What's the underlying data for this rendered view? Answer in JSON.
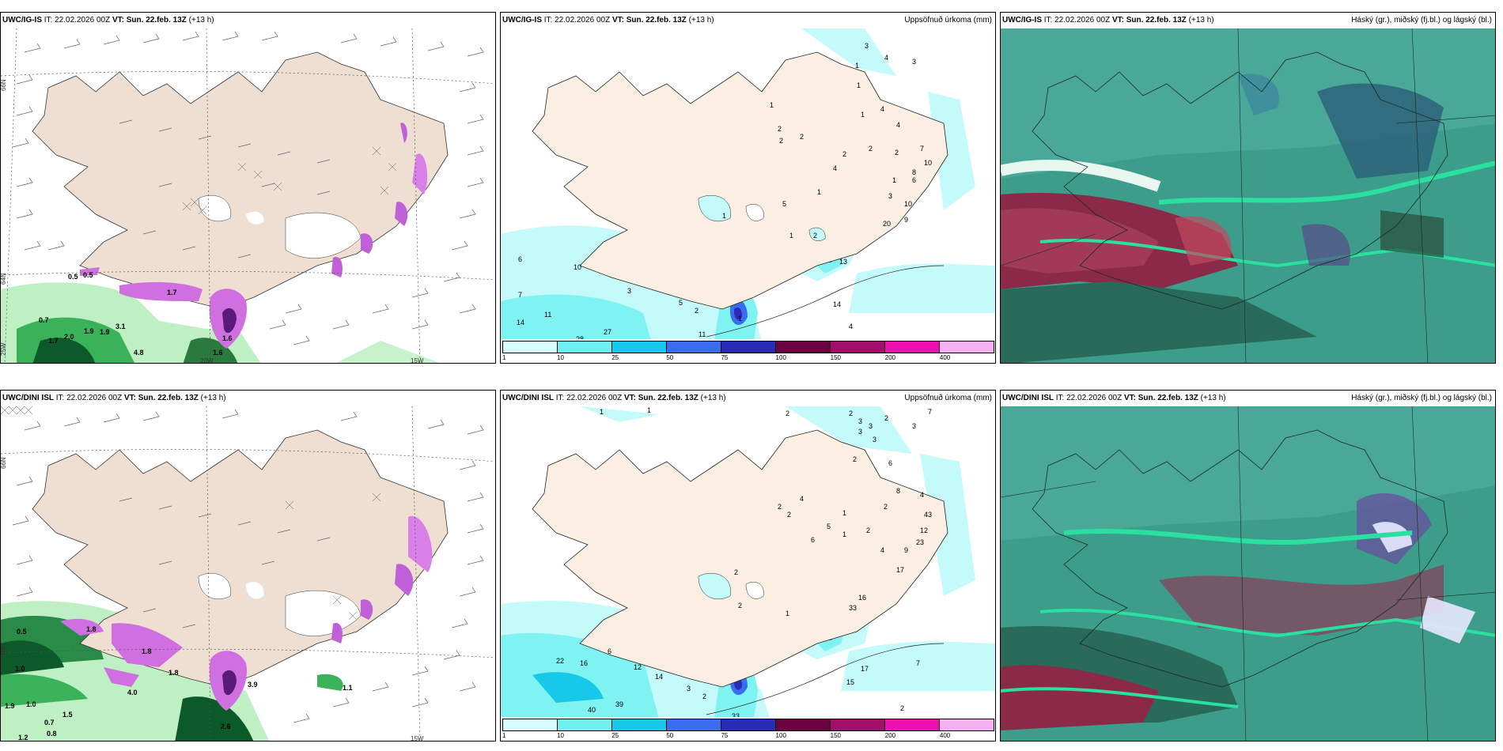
{
  "panels": {
    "p1": {
      "model": "UWC/IG-IS",
      "it": "IT: 22.02.2026 00Z",
      "vt_label": "VT:",
      "vt": "Sun. 22.feb. 13Z",
      "lead": "(+13 h)",
      "right_title": ""
    },
    "p2": {
      "model": "UWC/IG-IS",
      "it": "IT: 22.02.2026 00Z",
      "vt_label": "VT:",
      "vt": "Sun. 22.feb. 13Z",
      "lead": "(+13 h)",
      "right_title": "Uppsöfnuð úrkoma (mm)"
    },
    "p3": {
      "model": "UWC/IG-IS",
      "it": "IT: 22.02.2026 00Z",
      "vt_label": "VT:",
      "vt": "Sun. 22.feb. 13Z",
      "lead": "(+13 h)",
      "right_title": "Háský (gr.), miðský (fj.bl.) og lágský (bl.)"
    },
    "p4": {
      "model": "UWC/DINI ISL",
      "it": "IT: 22.02.2026 00Z",
      "vt_label": "VT:",
      "vt": "Sun. 22.feb. 13Z",
      "lead": "(+13 h)",
      "right_title": ""
    },
    "p5": {
      "model": "UWC/DINI ISL",
      "it": "IT: 22.02.2026 00Z",
      "vt_label": "VT:",
      "vt": "Sun. 22.feb. 13Z",
      "lead": "(+13 h)",
      "right_title": "Uppsöfnuð úrkoma (mm)"
    },
    "p6": {
      "model": "UWC/DINI ISL",
      "it": "IT: 22.02.2026 00Z",
      "vt_label": "VT:",
      "vt": "Sun. 22.feb. 13Z",
      "lead": "(+13 h)",
      "right_title": "Háský (gr.), miðský (fj.bl.) og lágský (bl.)"
    }
  },
  "axes": {
    "lat66": "66N",
    "lat64": "64N",
    "lat65": "65N",
    "lon20": "20W",
    "lon15": "15W",
    "lon25": "25W",
    "lat64b": "64N",
    "lat66b": "66N"
  },
  "legend": {
    "ticks": [
      "1",
      "10",
      "25",
      "50",
      "75",
      "100",
      "150",
      "200",
      "400"
    ],
    "colors": [
      "#d8fbfb",
      "#6ff0f0",
      "#18c8e8",
      "#3a6cf0",
      "#2a2ab8",
      "#6a0040",
      "#a0106a",
      "#ec10b0",
      "#f4b0f0"
    ]
  },
  "p1_labels": [
    "0.5",
    "0.5",
    "1.7",
    "1.6",
    "0.7",
    "2.0",
    "1.9",
    "3.1",
    "1.7",
    "1.9",
    "4.8",
    "1.6"
  ],
  "p4_labels": [
    "0.5",
    "1.0",
    "1.8",
    "1.0",
    "1.9",
    "1.5",
    "0.7",
    "0.8",
    "1.2",
    "1.8",
    "2.6",
    "3.9",
    "1.1",
    "1.8",
    "4.0"
  ],
  "p2_labels": [
    "3",
    "4",
    "3",
    "1",
    "1",
    "1",
    "4",
    "1",
    "4",
    "2",
    "2",
    "2",
    "7",
    "10",
    "8",
    "6",
    "1",
    "3",
    "4",
    "2",
    "2",
    "2",
    "9",
    "10",
    "20",
    "13",
    "1",
    "6",
    "10",
    "7",
    "14",
    "11",
    "3",
    "5",
    "2",
    "28",
    "27",
    "14",
    "4",
    "4",
    "11",
    "1",
    "5",
    "1",
    "1",
    "2"
  ],
  "p5_labels": [
    "1",
    "1",
    "2",
    "2",
    "3",
    "3",
    "2",
    "3",
    "7",
    "3",
    "3",
    "2",
    "6",
    "8",
    "4",
    "43",
    "23",
    "12",
    "9",
    "2",
    "17",
    "4",
    "1",
    "5",
    "2",
    "6",
    "2",
    "2",
    "4",
    "1",
    "22",
    "16",
    "6",
    "12",
    "14",
    "3",
    "2",
    "40",
    "39",
    "33",
    "15",
    "17",
    "7",
    "2",
    "16",
    "33",
    "2",
    "2",
    "1"
  ]
}
